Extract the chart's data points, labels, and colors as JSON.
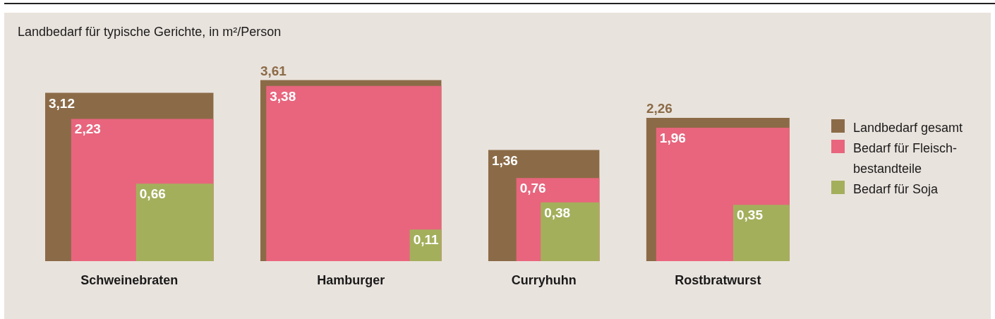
{
  "chart_data": {
    "type": "other",
    "title": "Landbedarf für typische Gerichte, in m²/Person",
    "categories": [
      "Schweinebraten",
      "Hamburger",
      "Curryhuhn",
      "Rostbratwurst"
    ],
    "series": [
      {
        "name": "Landbedarf gesamt",
        "color": "#8b6b47",
        "values": [
          3.12,
          3.61,
          1.36,
          2.26
        ],
        "value_labels": [
          "3,12",
          "3,61",
          "1,36",
          "2,26"
        ]
      },
      {
        "name": "Bedarf für Fleisch-\nbestandteile",
        "color": "#e8657d",
        "values": [
          2.23,
          3.38,
          0.76,
          1.96
        ],
        "value_labels": [
          "2,23",
          "3,38",
          "0,76",
          "1,96"
        ]
      },
      {
        "name": "Bedarf für Soja",
        "color": "#a4af5c",
        "values": [
          0.66,
          0.11,
          0.38,
          0.35
        ],
        "value_labels": [
          "0,66",
          "0,11",
          "0,38",
          "0,35"
        ]
      }
    ],
    "legend": "right"
  }
}
